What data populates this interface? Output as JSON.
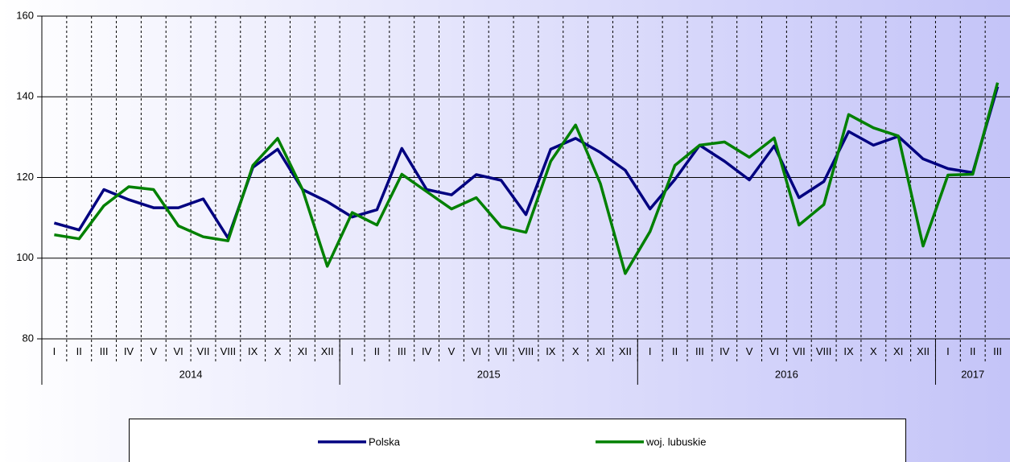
{
  "chart_data": {
    "type": "line",
    "groups": [
      {
        "name": "2014",
        "categories": [
          "I",
          "II",
          "III",
          "IV",
          "V",
          "VI",
          "VII",
          "VIII",
          "IX",
          "X",
          "XI",
          "XII"
        ]
      },
      {
        "name": "2015",
        "categories": [
          "I",
          "II",
          "III",
          "IV",
          "V",
          "VI",
          "VII",
          "VIII",
          "IX",
          "X",
          "XI",
          "XII"
        ]
      },
      {
        "name": "2016",
        "categories": [
          "I",
          "II",
          "III",
          "IV",
          "V",
          "VI",
          "VII",
          "VIII",
          "IX",
          "X",
          "XI",
          "XII"
        ]
      },
      {
        "name": "2017",
        "categories": [
          "I",
          "II",
          "III"
        ]
      }
    ],
    "series": [
      {
        "name": "Polska",
        "color": "#000080",
        "values": [
          108.7,
          107,
          117,
          114.5,
          112.5,
          112.5,
          114.7,
          105,
          122.5,
          127,
          117,
          114,
          110.2,
          112,
          127.2,
          117,
          115.7,
          120.7,
          119.3,
          110.8,
          127,
          129.7,
          126.2,
          121.8,
          112.2,
          119.5,
          128,
          124,
          119.4,
          127.8,
          115,
          119,
          131.4,
          128,
          130.2,
          124.6,
          122.2,
          121.2,
          142.5
        ]
      },
      {
        "name": "woj. lubuskie",
        "color": "#008000",
        "values": [
          105.8,
          104.8,
          113,
          117.7,
          117,
          108,
          105.3,
          104.3,
          123,
          129.7,
          117,
          98,
          111.3,
          108.2,
          120.8,
          116.5,
          112.2,
          115,
          107.8,
          106.4,
          124,
          133,
          118.5,
          96.2,
          106.6,
          123,
          128,
          128.8,
          125,
          129.8,
          108.2,
          113.3,
          135.6,
          132.3,
          130.3,
          103,
          120.6,
          120.8,
          143.5
        ]
      }
    ],
    "ylim": [
      80,
      160
    ],
    "yticks": [
      80,
      100,
      120,
      140,
      160
    ],
    "grid": true,
    "legend": "bottom"
  }
}
